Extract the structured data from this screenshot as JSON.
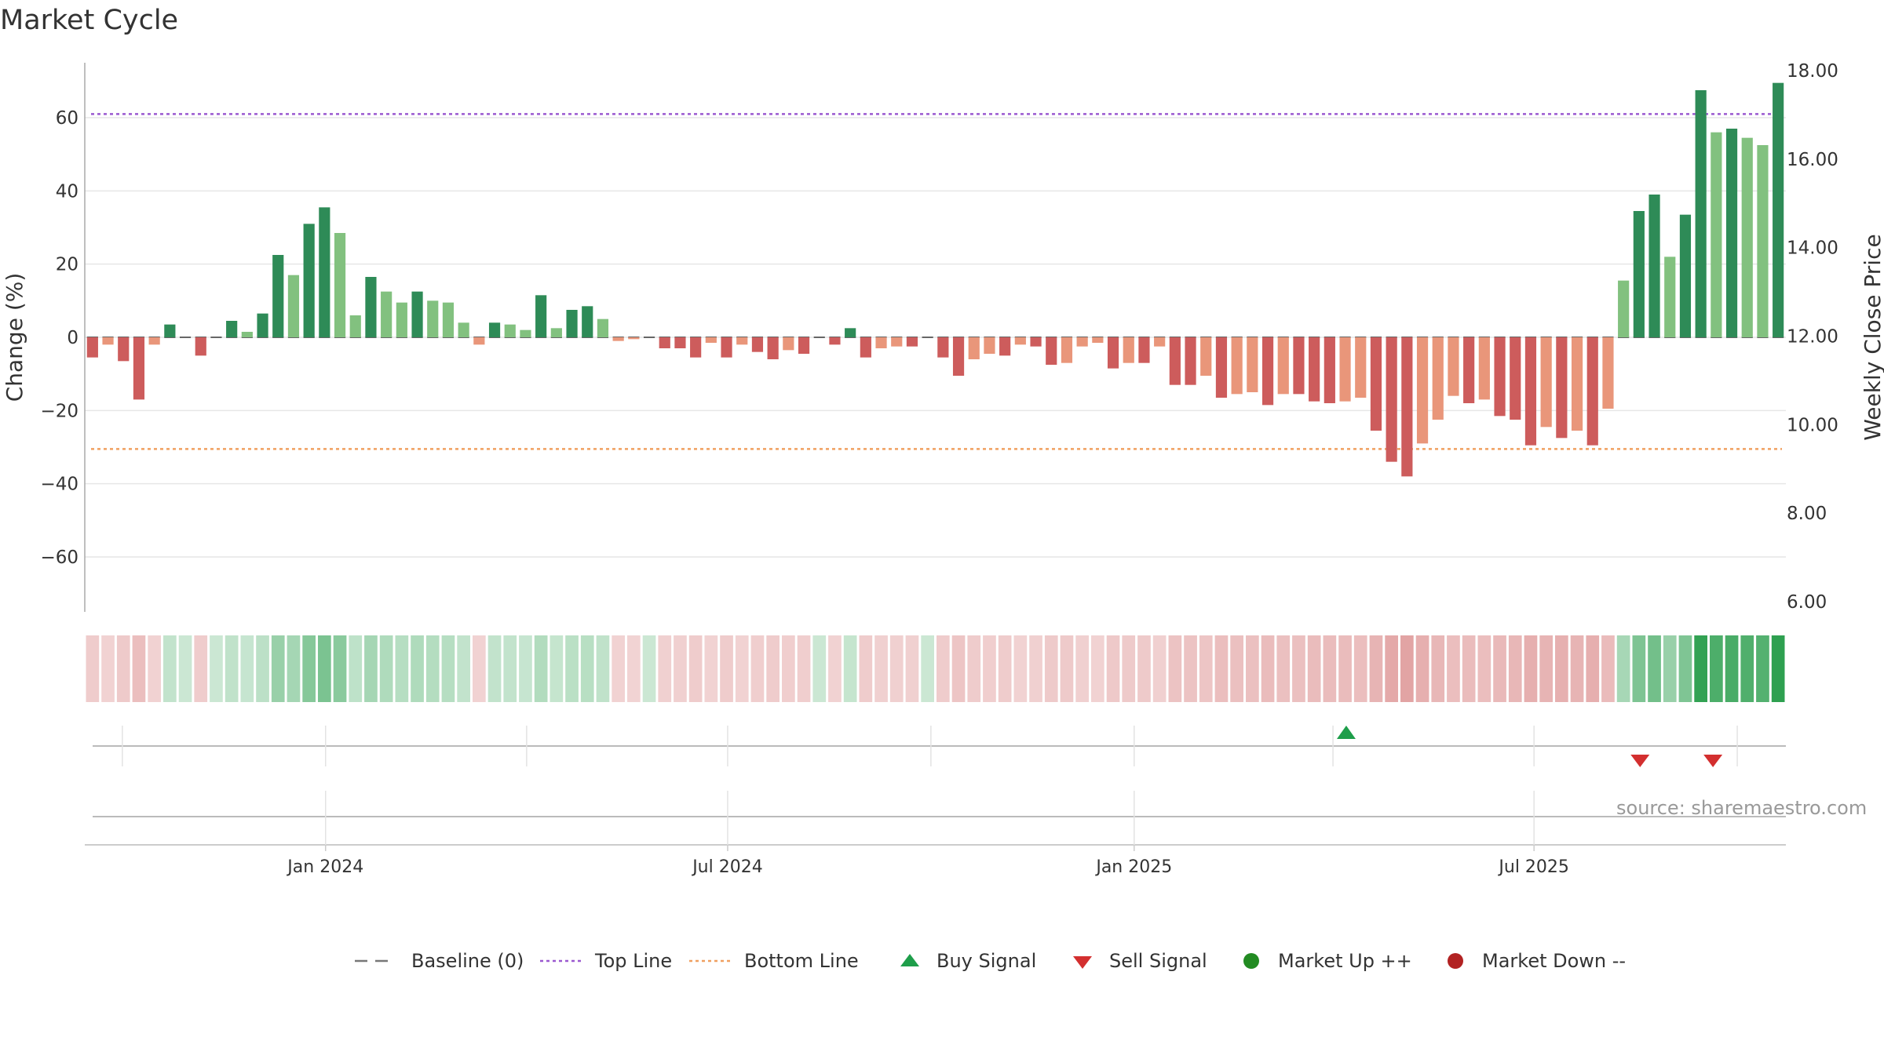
{
  "title": "Market Cycle",
  "source": "source: sharemaestro.com",
  "chart_data": {
    "type": "bar",
    "title": "Market Cycle",
    "ylabel_left": "Change (%)",
    "ylabel_right": "Weekly Close Price",
    "ylim_left": [
      -75,
      75
    ],
    "ylim_right": [
      6.0,
      18.0
    ],
    "yticks_left": [
      60,
      40,
      20,
      0,
      -20,
      -40,
      -60
    ],
    "yticks_left_labels": [
      "60",
      "40",
      "20",
      "0",
      "−20",
      "−40",
      "−60"
    ],
    "yticks_right_labels": [
      "18.00",
      "16.00",
      "14.00",
      "12.00",
      "10.00",
      "8.00",
      "6.00"
    ],
    "yticks_right": [
      18,
      16,
      14,
      12,
      10,
      8,
      6
    ],
    "top_line": 61,
    "bottom_line": -30.5,
    "baseline": 0,
    "x_start": "2023-09-14",
    "x_ticks": [
      {
        "label": "Jan 2024",
        "date": "2024-01-01"
      },
      {
        "label": "Jul 2024",
        "date": "2024-07-01"
      },
      {
        "label": "Jan 2025",
        "date": "2025-01-01"
      },
      {
        "label": "Jul 2025",
        "date": "2025-07-01"
      }
    ],
    "values": [
      -5.5,
      -2.0,
      -6.5,
      -17.0,
      -2.0,
      3.5,
      0,
      -5.0,
      0,
      4.5,
      1.5,
      6.5,
      22.5,
      17.0,
      31.0,
      35.5,
      28.5,
      6.0,
      16.5,
      12.5,
      9.5,
      12.5,
      10.0,
      9.5,
      4.0,
      -2.0,
      4.0,
      3.5,
      2.0,
      11.5,
      2.5,
      7.5,
      8.5,
      5.0,
      -1.0,
      -0.5,
      0,
      -3.0,
      -3.0,
      -5.5,
      -1.5,
      -5.5,
      -2.0,
      -4.0,
      -6.0,
      -3.5,
      -4.5,
      0,
      -2.0,
      2.5,
      -5.5,
      -3.0,
      -2.5,
      -2.5,
      0,
      -5.5,
      -10.5,
      -6.0,
      -4.5,
      -5.0,
      -2.0,
      -2.5,
      -7.5,
      -7.0,
      -2.5,
      -1.5,
      -8.5,
      -7.0,
      -7.0,
      -2.5,
      -13.0,
      -13.0,
      -10.5,
      -16.5,
      -15.5,
      -15.0,
      -18.5,
      -15.5,
      -15.5,
      -17.5,
      -18.0,
      -17.5,
      -16.5,
      -25.5,
      -34.0,
      -38.0,
      -29.0,
      -22.5,
      -16.0,
      -18.0,
      -17.0,
      -21.5,
      -22.5,
      -29.5,
      -24.5,
      -27.5,
      -25.5,
      -29.5,
      -19.5,
      15.5,
      34.5,
      39.0,
      22.0,
      33.5,
      67.5,
      56.0,
      57.0,
      54.5,
      52.5,
      69.5
    ],
    "signals": [
      {
        "type": "buy",
        "date": "2025-04-07"
      },
      {
        "type": "sell",
        "date": "2025-08-18"
      },
      {
        "type": "sell",
        "date": "2025-09-20"
      }
    ],
    "legend_placement": "bottom-center",
    "grid": true
  },
  "legend": [
    {
      "label": "Baseline (0)",
      "kind": "dash",
      "color": "#777777"
    },
    {
      "label": "Top Line",
      "kind": "dot",
      "color": "#9b59d0"
    },
    {
      "label": "Bottom Line",
      "kind": "dot",
      "color": "#f0a060"
    },
    {
      "label": "Buy Signal",
      "kind": "tri-up",
      "color": "#1e9e4a"
    },
    {
      "label": "Sell Signal",
      "kind": "tri-down",
      "color": "#d32f2f"
    },
    {
      "label": "Market Up ++",
      "kind": "circle",
      "color": "#228b22"
    },
    {
      "label": "Market Down --",
      "kind": "circle",
      "color": "#b22222"
    }
  ],
  "colors": {
    "pos_strong": "#2e8b57",
    "pos_light": "#82c17f",
    "neg_strong": "#cd5c5c",
    "neg_light": "#e9967a",
    "top_line": "#9b59d0",
    "bottom_line": "#f0a060",
    "grid": "#e6e6e6"
  }
}
